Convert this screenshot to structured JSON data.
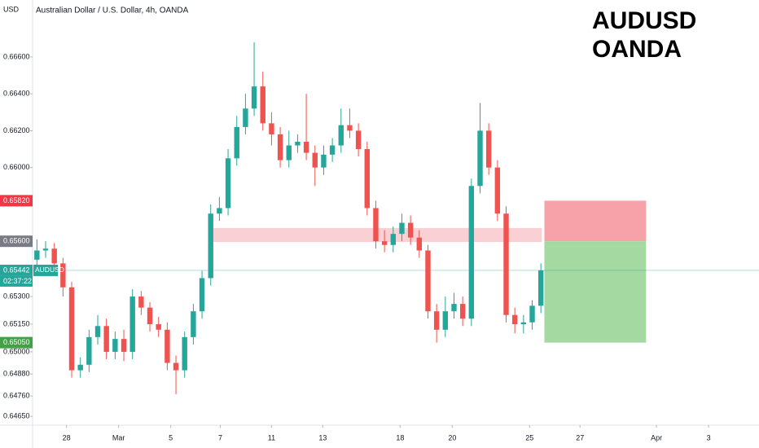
{
  "chart_data": {
    "type": "candlestick",
    "title": "Australian Dollar / U.S. Dollar, 4h, OANDA",
    "currency": "USD",
    "watermark": [
      "AUDUSD",
      "OANDA"
    ],
    "up_color": "#26a69a",
    "down_color": "#ef5350",
    "open": [
      0.655,
      0.6555,
      0.6556,
      0.6548,
      0.6535,
      0.649,
      0.6493,
      0.6508,
      0.6514,
      0.65,
      0.6507,
      0.65,
      0.653,
      0.6524,
      0.6515,
      0.6512,
      0.6494,
      0.649,
      0.6508,
      0.6522,
      0.654,
      0.6575,
      0.6578,
      0.6605,
      0.6622,
      0.6632,
      0.6644,
      0.6624,
      0.6618,
      0.6604,
      0.6612,
      0.6614,
      0.6608,
      0.66,
      0.6607,
      0.6612,
      0.6623,
      0.662,
      0.661,
      0.6578,
      0.656,
      0.6558,
      0.6564,
      0.657,
      0.6562,
      0.6555,
      0.6522,
      0.6512,
      0.6522,
      0.6526,
      0.6518,
      0.659,
      0.662,
      0.66,
      0.6575,
      0.652,
      0.6515,
      0.6516,
      0.6525
    ],
    "high": [
      0.6561,
      0.656,
      0.6559,
      0.6551,
      0.6538,
      0.6497,
      0.6512,
      0.652,
      0.6518,
      0.6511,
      0.6512,
      0.6534,
      0.6533,
      0.6527,
      0.6519,
      0.6516,
      0.6498,
      0.6511,
      0.6526,
      0.6544,
      0.658,
      0.6584,
      0.661,
      0.6628,
      0.664,
      0.6668,
      0.6652,
      0.663,
      0.6622,
      0.662,
      0.6618,
      0.664,
      0.6612,
      0.6612,
      0.6616,
      0.6632,
      0.6632,
      0.6624,
      0.6614,
      0.6582,
      0.6566,
      0.6568,
      0.6575,
      0.6574,
      0.6566,
      0.6558,
      0.6526,
      0.653,
      0.6532,
      0.653,
      0.6594,
      0.6635,
      0.6624,
      0.6604,
      0.6579,
      0.6524,
      0.652,
      0.6528,
      0.6548
    ],
    "low": [
      0.6546,
      0.6551,
      0.6544,
      0.653,
      0.6486,
      0.6486,
      0.6489,
      0.6504,
      0.6496,
      0.6496,
      0.6495,
      0.6496,
      0.652,
      0.6511,
      0.6508,
      0.649,
      0.6477,
      0.6486,
      0.6504,
      0.6518,
      0.6536,
      0.6571,
      0.6574,
      0.6601,
      0.6618,
      0.6628,
      0.662,
      0.6612,
      0.66,
      0.66,
      0.6608,
      0.6604,
      0.659,
      0.6596,
      0.6603,
      0.6608,
      0.6616,
      0.6606,
      0.6574,
      0.6556,
      0.6554,
      0.6554,
      0.656,
      0.6558,
      0.6551,
      0.6518,
      0.6505,
      0.6508,
      0.6518,
      0.6514,
      0.6514,
      0.6586,
      0.6596,
      0.6571,
      0.6516,
      0.651,
      0.651,
      0.6512,
      0.6521
    ],
    "close": [
      0.6555,
      0.6556,
      0.6548,
      0.6535,
      0.649,
      0.6493,
      0.6508,
      0.6514,
      0.65,
      0.6507,
      0.65,
      0.653,
      0.6524,
      0.6515,
      0.6512,
      0.6494,
      0.649,
      0.6508,
      0.6522,
      0.654,
      0.6575,
      0.6578,
      0.6605,
      0.6622,
      0.6632,
      0.6644,
      0.6624,
      0.6618,
      0.6604,
      0.6612,
      0.6614,
      0.6608,
      0.66,
      0.6607,
      0.6612,
      0.6623,
      0.662,
      0.661,
      0.6578,
      0.656,
      0.6558,
      0.6564,
      0.657,
      0.6562,
      0.6555,
      0.6522,
      0.6512,
      0.6522,
      0.6526,
      0.6518,
      0.659,
      0.662,
      0.66,
      0.6575,
      0.652,
      0.6515,
      0.6516,
      0.6525,
      0.65442
    ],
    "xlim": [
      -0.5,
      83.1
    ],
    "xticks": [
      {
        "value": 3.4,
        "label": "28"
      },
      {
        "value": 9.4,
        "label": "Mar"
      },
      {
        "value": 15.4,
        "label": "5"
      },
      {
        "value": 21.1,
        "label": "7"
      },
      {
        "value": 27,
        "label": "11"
      },
      {
        "value": 32.9,
        "label": "13"
      },
      {
        "value": 41.8,
        "label": "18"
      },
      {
        "value": 47.8,
        "label": "20"
      },
      {
        "value": 56.7,
        "label": "25"
      },
      {
        "value": 62.5,
        "label": "27"
      },
      {
        "value": 71.3,
        "label": "Apr"
      },
      {
        "value": 77.3,
        "label": "3"
      }
    ],
    "ylim": [
      0.64602,
      0.66909
    ],
    "yticks": [
      {
        "value": 0.666,
        "label": "0.66600"
      },
      {
        "value": 0.664,
        "label": "0.66400"
      },
      {
        "value": 0.662,
        "label": "0.66200"
      },
      {
        "value": 0.66,
        "label": "0.66000"
      },
      {
        "value": 0.653,
        "label": "0.65300"
      },
      {
        "value": 0.6515,
        "label": "0.65150"
      },
      {
        "value": 0.65,
        "label": "0.65000"
      },
      {
        "value": 0.6488,
        "label": "0.64880"
      },
      {
        "value": 0.6476,
        "label": "0.64760"
      },
      {
        "value": 0.6465,
        "label": "0.64650"
      }
    ],
    "zone": {
      "from": 0.65596,
      "to": 0.65672,
      "x": [
        20.1,
        58.1
      ],
      "color": "#f8c9cc"
    },
    "position": {
      "stop": 0.6582,
      "entry": 0.656,
      "target": 0.6505,
      "x": [
        58.4,
        70.1
      ],
      "stop_color": "#f7a1a8",
      "target_color": "#a5d9a2"
    },
    "price_badges": [
      {
        "value": 0.6582,
        "label": "0.65820",
        "color": "#f23645"
      },
      {
        "value": 0.656,
        "label": "0.65600",
        "color": "#787b86"
      },
      {
        "value": 0.6505,
        "label": "0.65050",
        "color": "#43a047"
      },
      {
        "value": 0.65442,
        "label": "0.65442",
        "color": "#26a69a",
        "symbol": "AUDUSD",
        "countdown": "02:37:22"
      }
    ]
  }
}
